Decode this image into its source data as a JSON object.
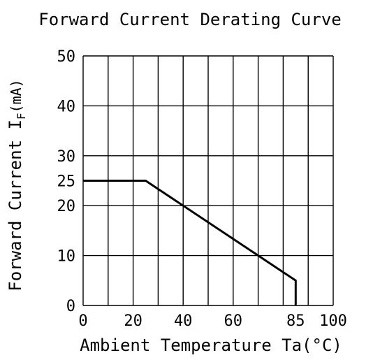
{
  "chart_data": {
    "type": "line",
    "title": "Forward Current Derating Curve",
    "xlabel": "Ambient Temperature Ta(°C)",
    "ylabel": "Forward Current IF(mA)",
    "ylabel_main": "Forward Current I",
    "ylabel_sub": "F",
    "ylabel_unit": "(mA)",
    "xlim": [
      0,
      100
    ],
    "ylim": [
      0,
      50
    ],
    "x_ticks": [
      0,
      20,
      40,
      60,
      85,
      100
    ],
    "x_tick_labels": [
      "0",
      "20",
      "40",
      "60",
      "85",
      "100"
    ],
    "y_ticks": [
      0,
      10,
      20,
      25,
      30,
      40,
      50
    ],
    "y_tick_labels": [
      "0",
      "10",
      "20",
      "25",
      "30",
      "40",
      "50"
    ],
    "x_grid": [
      0,
      10,
      20,
      30,
      40,
      50,
      60,
      70,
      80,
      90,
      100
    ],
    "y_grid": [
      0,
      10,
      20,
      30,
      40,
      50
    ],
    "grid": true,
    "series": [
      {
        "x": [
          0,
          25,
          85,
          85
        ],
        "y": [
          25,
          25,
          5,
          0
        ]
      }
    ],
    "colors": {
      "line": "#000000",
      "grid": "#000000",
      "background": "#ffffff"
    }
  }
}
